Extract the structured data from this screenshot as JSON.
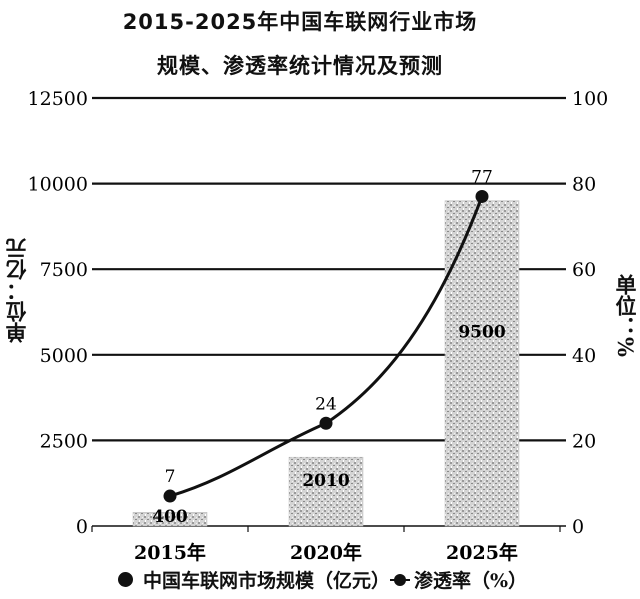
{
  "chart_data": {
    "type": "bar",
    "title": "2015-2025年中国车联网行业市场",
    "subtitle": "规模、渗透率统计情况及预测",
    "categories": [
      "2015年",
      "2020年",
      "2025年"
    ],
    "ylabel": "单位：亿元",
    "ylabel_right": "单位：%",
    "ylim": [
      0,
      12500
    ],
    "yticks": [
      "0",
      "2500",
      "5000",
      "7500",
      "10000",
      "12500"
    ],
    "ylim_right": [
      0,
      100
    ],
    "yticks_right": [
      "0",
      "20",
      "40",
      "60",
      "80",
      "100"
    ],
    "grid": true,
    "legend_position": "bottom",
    "series": [
      {
        "name": "中国车联网市场规模（亿元）",
        "type": "bar",
        "axis": "left",
        "values": [
          400,
          2010,
          9500
        ],
        "labels": [
          "400",
          "2010",
          "9500"
        ],
        "color": "#c9c9c9"
      },
      {
        "name": "渗透率（%）",
        "type": "line",
        "axis": "right",
        "values": [
          7,
          24,
          77
        ],
        "labels": [
          "7",
          "24",
          "77"
        ],
        "color": "#111111"
      }
    ]
  }
}
